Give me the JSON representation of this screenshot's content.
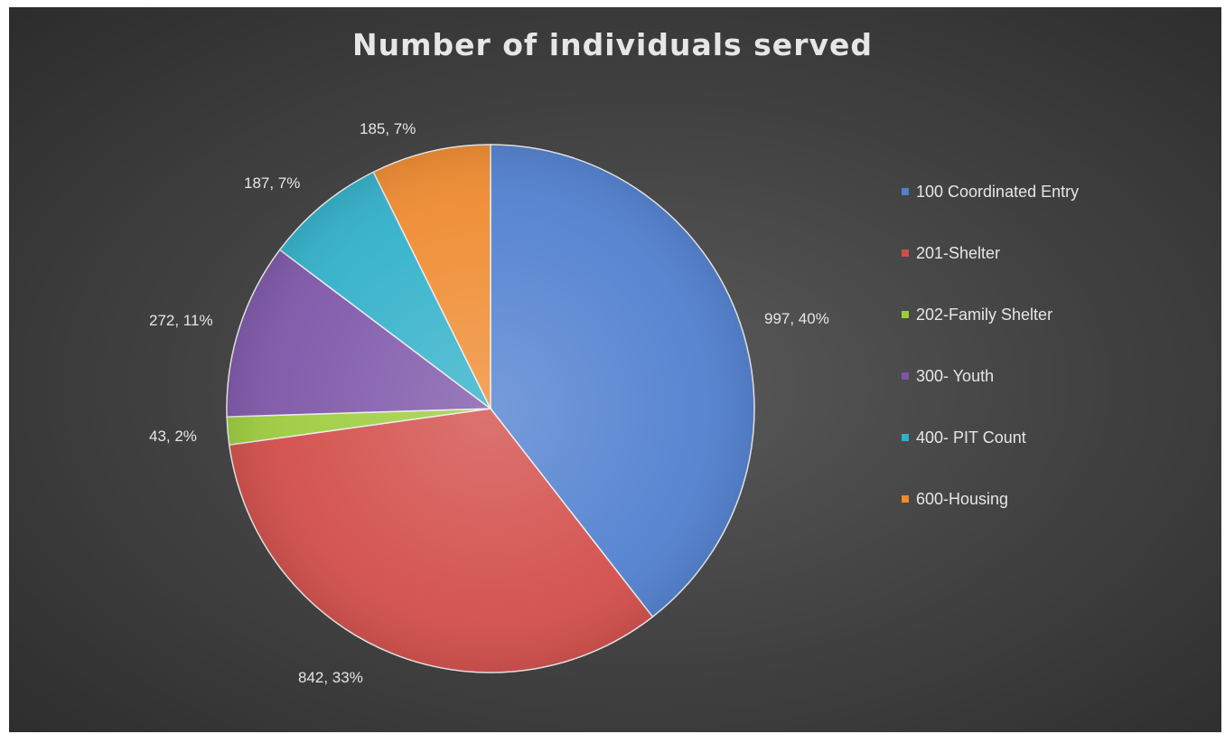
{
  "chart_data": {
    "type": "pie",
    "title": "Number of individuals served",
    "categories": [
      "100 Coordinated Entry",
      "201-Shelter",
      "202-Family Shelter",
      "300- Youth",
      "400- PIT Count",
      "600-Housing"
    ],
    "values": [
      997,
      842,
      43,
      272,
      187,
      185
    ],
    "data_labels": [
      "997, 40%",
      "842, 33%",
      "43, 2%",
      "272, 11%",
      "187, 7%",
      "185, 7%"
    ],
    "colors": [
      "#4f7fcf",
      "#d24c48",
      "#9ccc3c",
      "#7d55a8",
      "#2fb0c9",
      "#ef8a2e"
    ],
    "legend_position": "right",
    "background": "#444444"
  }
}
